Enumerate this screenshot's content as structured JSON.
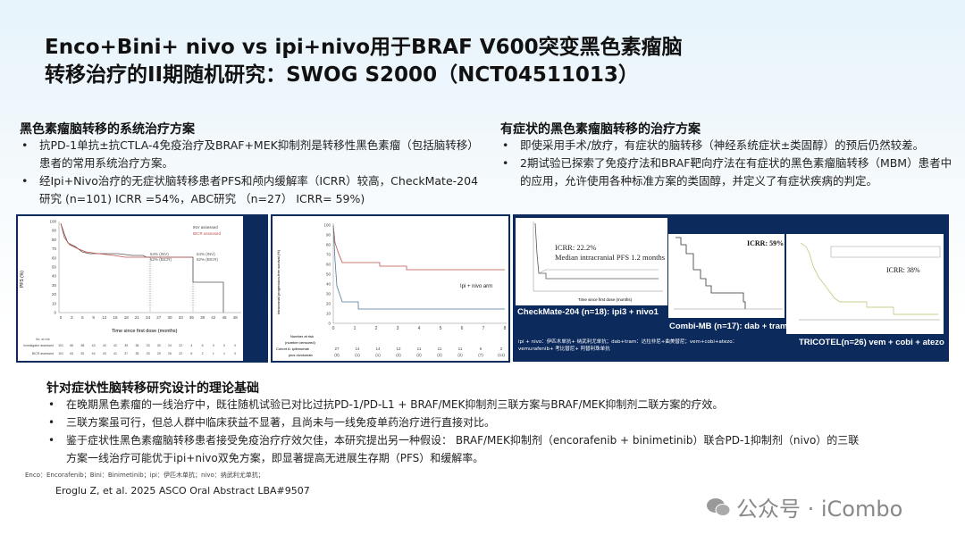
{
  "title": {
    "line1": "Enco+Bini+ nivo vs ipi+nivo用于BRAF V600突变黑色素瘤脑",
    "line2": "转移治疗的II期随机研究：SWOG S2000（NCT04511013）"
  },
  "left_section": {
    "heading": "黑色素瘤脑转移的系统治疗方案",
    "bullets": [
      "抗PD-1单抗±抗CTLA-4免疫治疗及BRAF+MEK抑制剂是转移性黑色素瘤（包括脑转移）患者的常用系统治疗方案。",
      "经Ipi+Nivo治疗的无症状脑转移患者PFS和颅内缓解率（ICRR）较高，CheckMate-204研究 (n=101) ICRR =54%，ABC研究 （n=27） ICRR= 59%)"
    ]
  },
  "right_section": {
    "heading": "有症状的黑色素瘤脑转移的治疗方案",
    "bullets": [
      "即使采用手术/放疗，有症状的脑转移（神经系统症状±类固醇）的预后仍然较差。",
      "2期试验已探索了免疫疗法和BRAF靶向疗法在有症状的黑色素瘤脑转移（MBM）患者中的应用，允许使用各种标准方案的类固醇，并定义了有症状疾病的判定。"
    ]
  },
  "figures": {
    "cm204_asym": {
      "ylabel": "PFS (%)",
      "xlabel": "Time since first dose (months)",
      "legend": [
        "INV assessed",
        "BICR assessed"
      ],
      "ann1": [
        "54% (INV)",
        "52% (BICR)"
      ],
      "ann2": [
        "54% (INV)",
        "52% (BICR)"
      ],
      "yticks": [
        "0",
        "10",
        "20",
        "30",
        "40",
        "50",
        "60",
        "70",
        "80",
        "90",
        "100"
      ],
      "xticks": [
        "0",
        "3",
        "6",
        "9",
        "12",
        "15",
        "18",
        "21",
        "24",
        "27",
        "30",
        "33",
        "36",
        "39",
        "42",
        "45",
        "48"
      ],
      "risk_title": "No. at risk",
      "risk_rows": [
        {
          "label": "Investigator assessed",
          "values": [
            "101",
            "66",
            "58",
            "43",
            "43",
            "42",
            "39",
            "38",
            "33",
            "30",
            "24",
            "22",
            "4",
            "6",
            "0",
            "0",
            "0"
          ]
        },
        {
          "label": "BICR assessed",
          "values": [
            "101",
            "63",
            "52",
            "44",
            "43",
            "41",
            "37",
            "35",
            "33",
            "29",
            "26",
            "22",
            "8",
            "2",
            "1",
            "1",
            "0"
          ]
        }
      ]
    },
    "abc": {
      "ylabel": "Intracranial progression-free survival (%)",
      "arm_label": "Ipi + nivo arm",
      "yticks": [
        "0",
        "10",
        "20",
        "30",
        "40",
        "50",
        "60",
        "70",
        "80",
        "90",
        "100"
      ],
      "xticks": [
        "0",
        "1",
        "2",
        "3",
        "4",
        "5",
        "6",
        "7",
        "8"
      ],
      "risk_title": [
        "Number at risk",
        "(number censored)"
      ],
      "risk_label": [
        "Cohort A: ipilimumab",
        "plus nivolumab"
      ],
      "risk_values": [
        "27",
        "14",
        "14",
        "12",
        "11",
        "11",
        "11",
        "6",
        "2"
      ],
      "censored": [
        "(0)",
        "(1)",
        "(1)",
        "(2)",
        "(2)",
        "(2)",
        "(2)",
        "(7)",
        "(11)"
      ]
    },
    "cm204_sym": {
      "icrr": "ICRR: 22.2%",
      "pfs": "Median intracranial PFS 1.2 months",
      "caption": "CheckMate-204 (n=18): ipi3 + nivo1",
      "xlabel": "Time since first dose (months)"
    },
    "combi_mb": {
      "icrr": "ICRR: 59%",
      "caption": "Combi-MB (n=17): dab + tram"
    },
    "tricotel": {
      "icrr": "ICRR: 38%",
      "caption": "TRICOTEL(n=26)  vem + cobi + atezo"
    },
    "abbrev": [
      "ipi + nivo：伊匹木单抗+ 纳武利尤单抗；dab+tram：达拉非尼+曲美替尼；vem+cobi+atezo：",
      "vemurafenib+ 考比替尼+ 阿替利珠单抗"
    ]
  },
  "bottom_section": {
    "heading": "针对症状性脑转移研究设计的理论基础",
    "bullets": [
      "在晚期黑色素瘤的一线治疗中，既往随机试验已对比过抗PD-1/PD-L1 + BRAF/MEK抑制剂三联方案与BRAF/MEK抑制剂二联方案的疗效。",
      "三联方案虽可行，但总人群中临床获益不显著，且尚未与一线免疫单药治疗进行直接对比。",
      "鉴于症状性黑色素瘤脑转移患者接受免疫治疗疗效欠佳，本研究提出另一种假设： BRAF/MEK抑制剂（encorafenib + binimetinib）联合PD-1抑制剂（nivo）的三联方案一线治疗可能优于ipi+nivo双免方案，即显著提高无进展生存期（PFS）和缓解率。"
    ]
  },
  "footnote": "Enco：Encorafenib；Bini：Binimetinib；ipi：伊匹木单抗；nivo：纳武利尤单抗；",
  "reference": "Eroglu Z, et al. 2025 ASCO Oral Abstract LBA#9507",
  "watermark": "公众号 · iCombo",
  "colors": {
    "navy": "#0c2a5c",
    "km_red": "#c0504d",
    "km_gray": "#555555"
  }
}
